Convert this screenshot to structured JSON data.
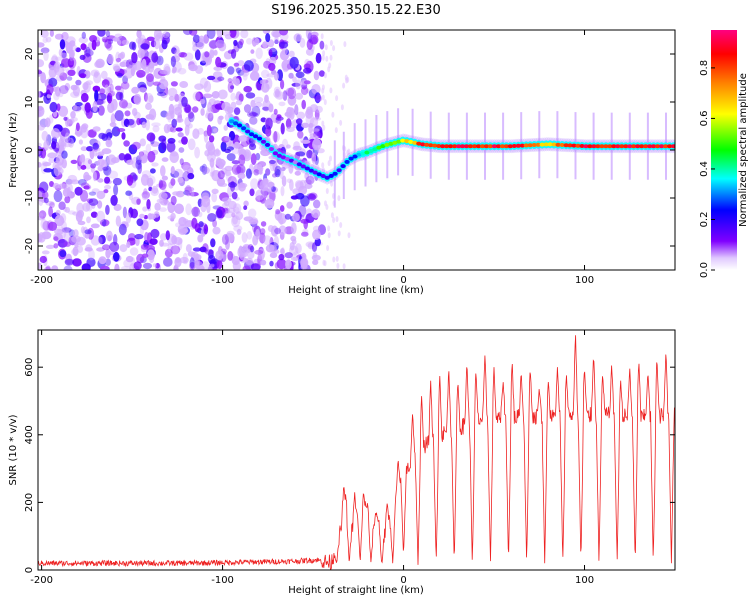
{
  "title": "S196.2025.350.15.22.E30",
  "chart_data": [
    {
      "type": "heatmap",
      "name": "spectrogram",
      "xlabel": "Height of straight line (km)",
      "ylabel": "Frequency (Hz)",
      "xlim": [
        -202,
        150
      ],
      "ylim": [
        -25,
        25
      ],
      "xticks": [
        -200,
        -100,
        0,
        100
      ],
      "yticks": [
        20,
        10,
        0,
        -10,
        -20
      ],
      "colorbar": {
        "label": "Normalized spectral amplitude",
        "range": [
          0,
          0.95
        ],
        "ticks": [
          0.0,
          0.2,
          0.4,
          0.6,
          0.8
        ],
        "tick_labels": [
          "0.0",
          "0.2",
          "0.4",
          "0.6",
          "0.8"
        ],
        "colormap": [
          "#ffffff",
          "#8000ff",
          "#0000ff",
          "#00ffff",
          "#00ff00",
          "#ffff00",
          "#ff8000",
          "#ff0000",
          "#ff0080"
        ]
      },
      "noise_region_x": [
        -202,
        -45
      ],
      "gap_region_x": [
        -45,
        -30
      ],
      "ridge": {
        "x": [
          -95,
          -90,
          -85,
          -80,
          -75,
          -70,
          -60,
          -50,
          -42,
          -38,
          -35,
          -30,
          -25,
          -20,
          -15,
          -10,
          -5,
          0,
          10,
          20,
          40,
          60,
          80,
          100,
          120,
          150
        ],
        "freq": [
          6.0,
          5.0,
          3.5,
          2.5,
          1.0,
          -1.0,
          -2.5,
          -4.5,
          -5.8,
          -5.0,
          -4.0,
          -2.0,
          -1.0,
          -0.5,
          0.3,
          1.0,
          1.5,
          2.0,
          1.2,
          0.8,
          0.8,
          0.8,
          1.2,
          0.8,
          0.8,
          0.8
        ],
        "amp": [
          0.25,
          0.25,
          0.2,
          0.2,
          0.2,
          0.15,
          0.15,
          0.2,
          0.25,
          0.25,
          0.25,
          0.3,
          0.35,
          0.4,
          0.45,
          0.5,
          0.55,
          0.6,
          0.85,
          0.9,
          0.9,
          0.9,
          0.7,
          0.9,
          0.9,
          0.9
        ]
      },
      "pulse_x": [
        -38,
        -33,
        -27,
        -21,
        -15,
        -9,
        -3,
        5,
        15,
        25,
        35,
        45,
        55,
        65,
        75,
        85,
        95,
        105,
        115,
        125,
        135,
        145
      ]
    },
    {
      "type": "line",
      "name": "snr",
      "xlabel": "Height of straight line (km)",
      "ylabel": "SNR (10 * v/v)",
      "xlim": [
        -202,
        150
      ],
      "ylim": [
        0,
        710
      ],
      "xticks": [
        -200,
        -100,
        0,
        100
      ],
      "yticks": [
        0,
        200,
        400,
        600
      ],
      "color": "#ee2222",
      "series": [
        {
          "name": "SNR",
          "x": [
            -202,
            -180,
            -160,
            -140,
            -120,
            -100,
            -80,
            -60,
            -48,
            -45,
            -40,
            -35,
            -32,
            -30,
            -28,
            -25,
            -22,
            -20,
            -18,
            -15,
            -12,
            -10,
            -8,
            -5,
            -2,
            0,
            2,
            5,
            8,
            10,
            15,
            20,
            25,
            30,
            35,
            40,
            45,
            50,
            60,
            70,
            80,
            90,
            100,
            110,
            120,
            130,
            140,
            150
          ],
          "base": [
            20,
            20,
            20,
            20,
            20,
            22,
            24,
            26,
            30,
            26,
            20,
            110,
            200,
            140,
            120,
            170,
            210,
            180,
            130,
            150,
            120,
            110,
            140,
            190,
            240,
            280,
            300,
            320,
            340,
            360,
            380,
            400,
            410,
            420,
            430,
            440,
            450,
            445,
            450,
            455,
            450,
            460,
            455,
            460,
            455,
            450,
            455,
            460
          ],
          "peaks_x": [
            -33,
            -27,
            -21,
            -15,
            -9,
            -3,
            5,
            10,
            15,
            20,
            25,
            30,
            35,
            40,
            45,
            50,
            55,
            60,
            65,
            70,
            75,
            80,
            85,
            90,
            95,
            100,
            105,
            110,
            115,
            120,
            125,
            130,
            135,
            140,
            145
          ],
          "peaks_y": [
            250,
            230,
            190,
            170,
            200,
            330,
            470,
            520,
            560,
            580,
            600,
            560,
            620,
            590,
            640,
            600,
            560,
            620,
            590,
            600,
            540,
            560,
            600,
            580,
            710,
            600,
            640,
            580,
            610,
            560,
            600,
            620,
            590,
            630,
            650
          ],
          "dips_x": [
            -37,
            -30,
            -24,
            -18,
            -12,
            -6,
            0,
            8,
            18,
            28,
            38,
            48,
            58,
            68,
            78,
            88,
            98,
            108,
            118,
            128,
            138,
            148
          ],
          "dips_y": [
            20,
            20,
            20,
            20,
            15,
            20,
            40,
            15,
            20,
            15,
            20,
            15,
            20,
            15,
            20,
            15,
            20,
            15,
            20,
            15,
            20,
            20
          ]
        }
      ]
    }
  ]
}
